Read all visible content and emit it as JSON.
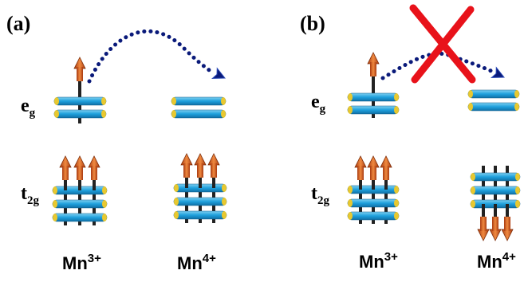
{
  "panels": [
    {
      "label": "(a)",
      "levels": [
        {
          "symbol": "e",
          "subscript": "g"
        },
        {
          "symbol": "t",
          "subscript": "2g"
        }
      ],
      "ions": [
        {
          "element": "Mn",
          "charge": "3+"
        },
        {
          "element": "Mn",
          "charge": "4+"
        }
      ]
    },
    {
      "label": "(b)",
      "levels": [
        {
          "symbol": "e",
          "subscript": "g"
        },
        {
          "symbol": "t",
          "subscript": "2g"
        }
      ],
      "ions": [
        {
          "element": "Mn",
          "charge": "3+"
        },
        {
          "element": "Mn",
          "charge": "4+"
        }
      ]
    }
  ]
}
